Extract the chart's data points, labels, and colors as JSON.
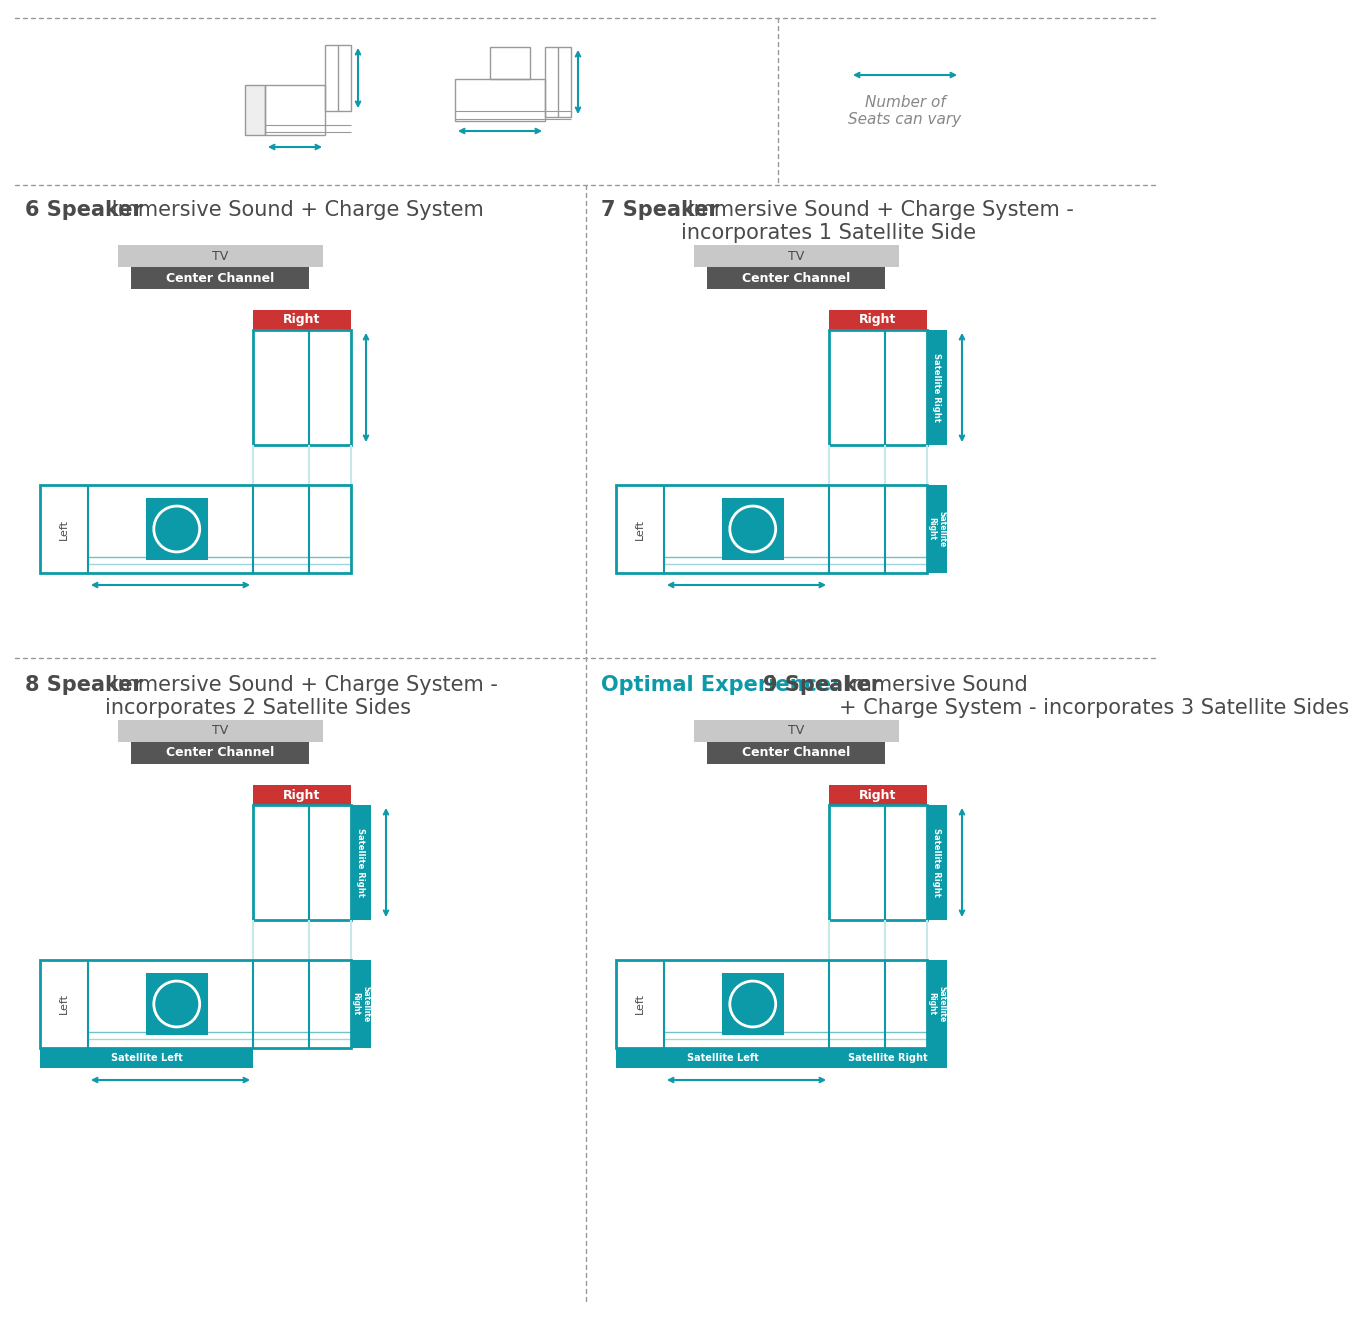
{
  "bg_color": "#ffffff",
  "teal": "#0d9aa8",
  "teal_light": "#c5e8eb",
  "red": "#cc3333",
  "dark_gray": "#4a4a4a",
  "mid_gray": "#888888",
  "tv_gray": "#c8c8c8",
  "cc_gray": "#555555",
  "title1_bold": "6 Speaker",
  "title1_reg": " Immersive Sound + Charge System",
  "title2_bold": "7 Speaker",
  "title2_reg": " Immersive Sound + Charge System -\nincorporates 1 Satellite Side",
  "title3_bold": "8 Speaker",
  "title3_reg": " Immersive Sound + Charge System -\nincorporates 2 Satellite Sides",
  "title4_teal": "Optimal Experience: ",
  "title4_bold": "9 Speaker",
  "title4_reg": " Immersive Sound\n+ Charge System - incorporates 3 Satellite Sides",
  "note_text": "Number of\nSeats can vary"
}
